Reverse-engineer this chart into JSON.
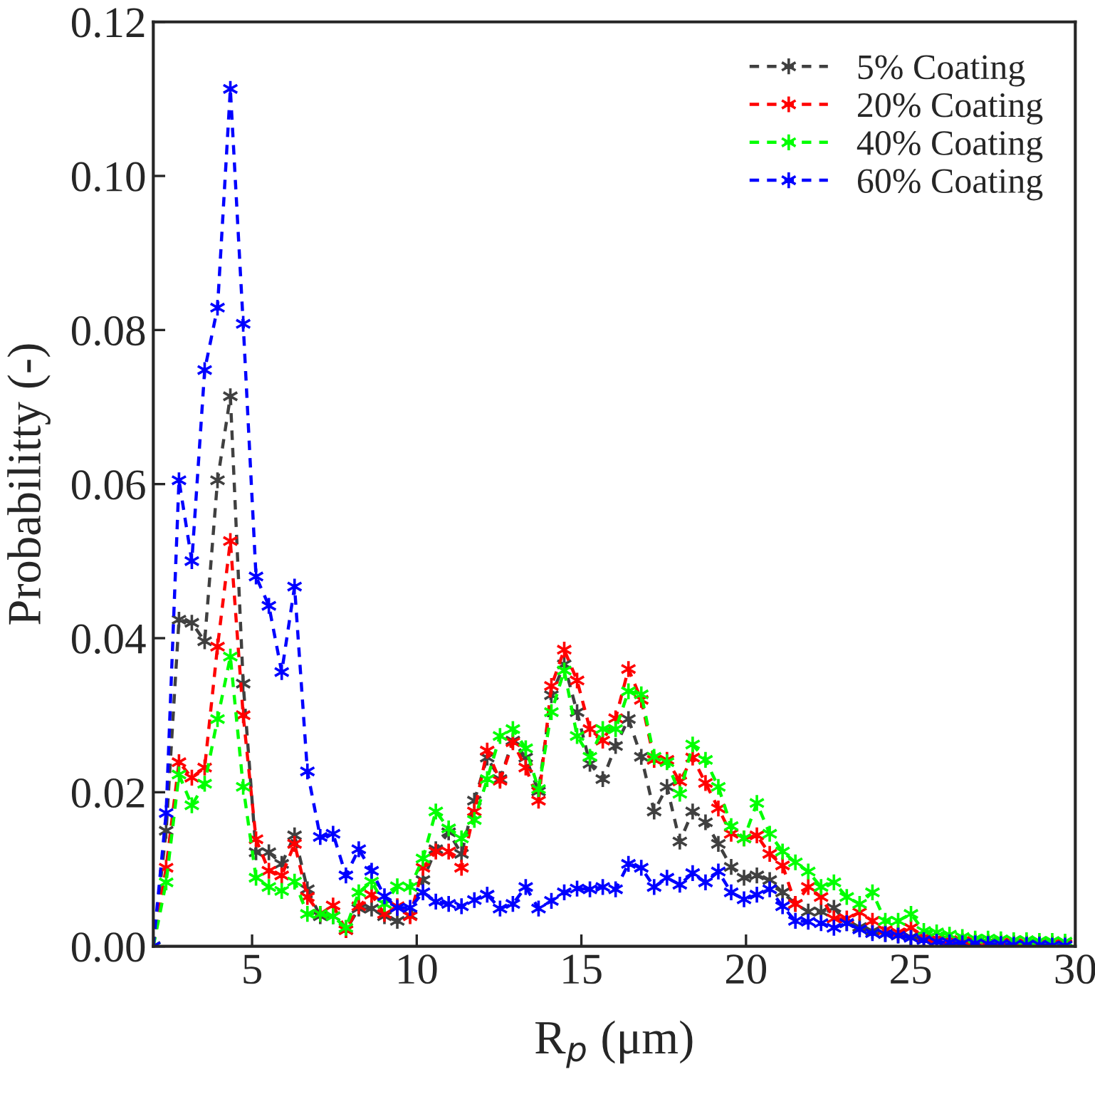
{
  "chart_data": {
    "type": "line",
    "xlabel": "R$_{p}$ (μm)",
    "ylabel": "Probabilitty (-)",
    "x": [
      2.0,
      2.39,
      2.78,
      3.17,
      3.56,
      3.95,
      4.34,
      4.73,
      5.12,
      5.51,
      5.9,
      6.29,
      6.68,
      7.07,
      7.46,
      7.85,
      8.24,
      8.63,
      9.02,
      9.41,
      9.8,
      10.19,
      10.58,
      10.97,
      11.36,
      11.75,
      12.14,
      12.53,
      12.92,
      13.31,
      13.7,
      14.09,
      14.48,
      14.87,
      15.26,
      15.65,
      16.04,
      16.43,
      16.82,
      17.21,
      17.6,
      17.99,
      18.38,
      18.77,
      19.16,
      19.55,
      19.94,
      20.33,
      20.72,
      21.11,
      21.5,
      21.89,
      22.28,
      22.67,
      23.06,
      23.45,
      23.84,
      24.23,
      24.62,
      25.01,
      25.4,
      25.79,
      26.18,
      26.57,
      26.96,
      27.35,
      27.74,
      28.13,
      28.52,
      28.91,
      29.3,
      29.69
    ],
    "series": [
      {
        "name": "5% Coating",
        "color": "#404040",
        "values": [
          0.0,
          0.015,
          0.0424,
          0.042,
          0.0396,
          0.0605,
          0.0714,
          0.0341,
          0.0122,
          0.0122,
          0.0107,
          0.0144,
          0.0074,
          0.0039,
          0.0039,
          0.0021,
          0.0049,
          0.0049,
          0.0039,
          0.0033,
          0.004,
          0.0086,
          0.0126,
          0.0148,
          0.012,
          0.0189,
          0.0245,
          0.0217,
          0.0267,
          0.0245,
          0.0201,
          0.0326,
          0.0366,
          0.0304,
          0.0237,
          0.0217,
          0.026,
          0.0295,
          0.0246,
          0.0175,
          0.0207,
          0.0136,
          0.0175,
          0.0161,
          0.0133,
          0.0103,
          0.0089,
          0.0092,
          0.0086,
          0.007,
          0.0055,
          0.0045,
          0.0045,
          0.005,
          0.003,
          0.0025,
          0.002,
          0.0016,
          0.0014,
          0.0012,
          0.001,
          0.0008,
          0.0007,
          0.0006,
          0.0005,
          0.0005,
          0.0004,
          0.0004,
          0.0003,
          0.0003,
          0.0003,
          0.0002
        ]
      },
      {
        "name": "20% Coating",
        "color": "#ff0000",
        "values": [
          0.0,
          0.0102,
          0.0239,
          0.0219,
          0.0232,
          0.0389,
          0.0526,
          0.03,
          0.0139,
          0.0098,
          0.0092,
          0.0133,
          0.0064,
          0.0042,
          0.0053,
          0.0021,
          0.0052,
          0.0067,
          0.0042,
          0.0052,
          0.0039,
          0.0102,
          0.0123,
          0.0123,
          0.0102,
          0.0175,
          0.0254,
          0.0215,
          0.0265,
          0.0232,
          0.0189,
          0.0338,
          0.0385,
          0.0345,
          0.0282,
          0.0267,
          0.0296,
          0.036,
          0.032,
          0.0242,
          0.0242,
          0.0214,
          0.0245,
          0.0212,
          0.0179,
          0.0146,
          0.014,
          0.0144,
          0.012,
          0.0105,
          0.0055,
          0.0077,
          0.0064,
          0.0036,
          0.0036,
          0.0044,
          0.0033,
          0.0021,
          0.0018,
          0.0024,
          0.0012,
          0.001,
          0.0008,
          0.0007,
          0.0006,
          0.0005,
          0.0005,
          0.0004,
          0.0004,
          0.0003,
          0.0003,
          0.0003
        ]
      },
      {
        "name": "40% Coating",
        "color": "#00ff00",
        "values": [
          0.0,
          0.0083,
          0.0223,
          0.0183,
          0.0211,
          0.0295,
          0.0376,
          0.0207,
          0.0089,
          0.0077,
          0.0072,
          0.0084,
          0.0042,
          0.0042,
          0.0039,
          0.0024,
          0.007,
          0.0084,
          0.0055,
          0.0078,
          0.0077,
          0.0114,
          0.0175,
          0.0153,
          0.014,
          0.0164,
          0.0217,
          0.0273,
          0.0282,
          0.0257,
          0.0204,
          0.0304,
          0.0358,
          0.0273,
          0.0246,
          0.0282,
          0.0282,
          0.0331,
          0.0327,
          0.0246,
          0.0239,
          0.0198,
          0.0262,
          0.0242,
          0.0207,
          0.0156,
          0.014,
          0.0186,
          0.0146,
          0.0123,
          0.0109,
          0.0097,
          0.0077,
          0.0083,
          0.0064,
          0.0055,
          0.007,
          0.0033,
          0.0033,
          0.0042,
          0.002,
          0.0018,
          0.0015,
          0.0012,
          0.001,
          0.001,
          0.0009,
          0.0008,
          0.0008,
          0.0007,
          0.0007,
          0.0006
        ]
      },
      {
        "name": "60% Coating",
        "color": "#0000ff",
        "values": [
          0.0,
          0.0173,
          0.0605,
          0.05,
          0.0748,
          0.0829,
          0.1113,
          0.0808,
          0.048,
          0.0442,
          0.0356,
          0.0467,
          0.0227,
          0.0142,
          0.0146,
          0.0092,
          0.0126,
          0.0098,
          0.0065,
          0.005,
          0.005,
          0.007,
          0.0058,
          0.0055,
          0.0052,
          0.006,
          0.0067,
          0.0049,
          0.0055,
          0.0077,
          0.0049,
          0.0059,
          0.007,
          0.0075,
          0.0074,
          0.0077,
          0.0074,
          0.0107,
          0.0102,
          0.0077,
          0.0089,
          0.008,
          0.0095,
          0.0083,
          0.0097,
          0.007,
          0.0061,
          0.0067,
          0.0074,
          0.0052,
          0.0033,
          0.0032,
          0.003,
          0.0024,
          0.003,
          0.0022,
          0.0017,
          0.0016,
          0.0014,
          0.0011,
          0.0008,
          0.0006,
          0.0005,
          0.0004,
          0.0004,
          0.0003,
          0.0003,
          0.0002,
          0.0002,
          0.0002,
          0.0001,
          0.0001
        ]
      }
    ],
    "xlim": [
      2,
      30
    ],
    "xticks": [
      5,
      10,
      15,
      20,
      25,
      30
    ],
    "ylim": [
      0,
      0.12
    ],
    "yticks": [
      {
        "value": 0,
        "label": "0.00"
      },
      {
        "value": 0.02,
        "label": "0.02"
      },
      {
        "value": 0.04,
        "label": "0.04"
      },
      {
        "value": 0.06,
        "label": "0.06"
      },
      {
        "value": 0.08,
        "label": "0.08"
      },
      {
        "value": 0.1,
        "label": "0.10"
      },
      {
        "value": 0.12,
        "label": "0.12"
      }
    ],
    "marker": "cross",
    "line_style": "dashed",
    "legend": "top right",
    "grid": false
  }
}
